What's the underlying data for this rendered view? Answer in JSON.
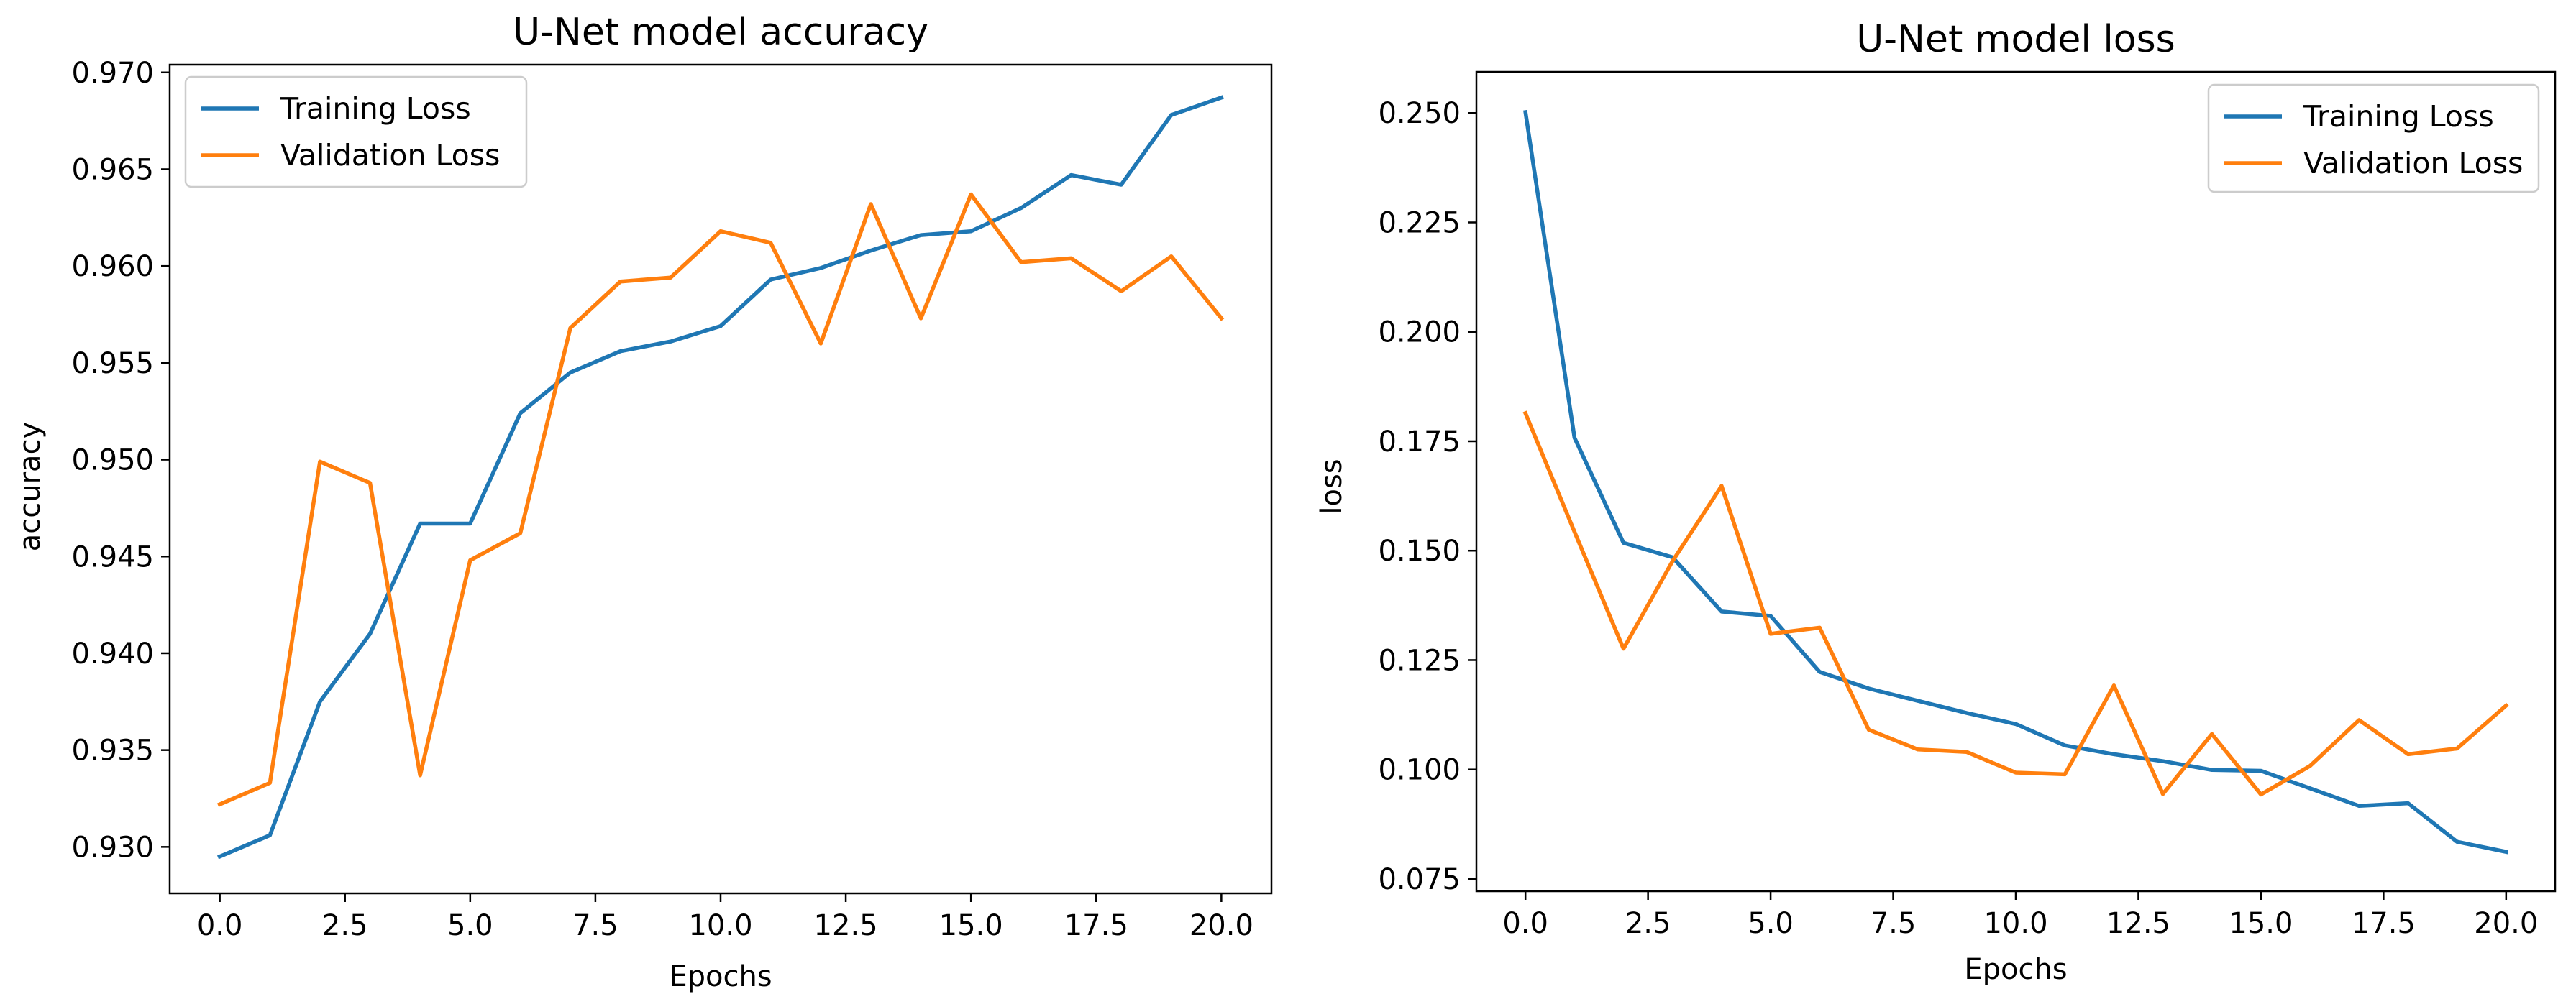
{
  "chart_data": [
    {
      "type": "line",
      "title": "U-Net model accuracy",
      "xlabel": "Epochs",
      "ylabel": "accuracy",
      "xlim": [
        -1,
        21
      ],
      "ylim": [
        0.9276,
        0.9704
      ],
      "xticks": [
        0,
        2.5,
        5,
        7.5,
        10,
        12.5,
        15,
        17.5,
        20
      ],
      "xtick_labels": [
        "0.0",
        "2.5",
        "5.0",
        "7.5",
        "10.0",
        "12.5",
        "15.0",
        "17.5",
        "20.0"
      ],
      "yticks": [
        0.93,
        0.935,
        0.94,
        0.945,
        0.95,
        0.955,
        0.96,
        0.965,
        0.97
      ],
      "ytick_labels": [
        "0.930",
        "0.935",
        "0.940",
        "0.945",
        "0.950",
        "0.955",
        "0.960",
        "0.965",
        "0.970"
      ],
      "legend_position": "top-left",
      "x": [
        0,
        1,
        2,
        3,
        4,
        5,
        6,
        7,
        8,
        9,
        10,
        11,
        12,
        13,
        14,
        15,
        16,
        17,
        18,
        19,
        20
      ],
      "series": [
        {
          "name": "Training Loss",
          "color": "#1f77b4",
          "values": [
            0.9295,
            0.9306,
            0.9375,
            0.941,
            0.9467,
            0.9467,
            0.9524,
            0.9545,
            0.9556,
            0.9561,
            0.9569,
            0.9593,
            0.9599,
            0.9608,
            0.9616,
            0.9618,
            0.963,
            0.9647,
            0.9642,
            0.9678,
            0.9687
          ]
        },
        {
          "name": "Validation Loss",
          "color": "#ff7f0e",
          "values": [
            0.9322,
            0.9333,
            0.9499,
            0.9488,
            0.9337,
            0.9448,
            0.9462,
            0.9568,
            0.9592,
            0.9594,
            0.9618,
            0.9612,
            0.956,
            0.9632,
            0.9573,
            0.9637,
            0.9602,
            0.9604,
            0.9587,
            0.9605,
            0.9573
          ]
        }
      ]
    },
    {
      "type": "line",
      "title": "U-Net model loss",
      "xlabel": "Epochs",
      "ylabel": "loss",
      "xlim": [
        -1,
        21
      ],
      "ylim": [
        0.0722,
        0.2594
      ],
      "xticks": [
        0,
        2.5,
        5,
        7.5,
        10,
        12.5,
        15,
        17.5,
        20
      ],
      "xtick_labels": [
        "0.0",
        "2.5",
        "5.0",
        "7.5",
        "10.0",
        "12.5",
        "15.0",
        "17.5",
        "20.0"
      ],
      "yticks": [
        0.075,
        0.1,
        0.125,
        0.15,
        0.175,
        0.2,
        0.225,
        0.25
      ],
      "ytick_labels": [
        "0.075",
        "0.100",
        "0.125",
        "0.150",
        "0.175",
        "0.200",
        "0.225",
        "0.250"
      ],
      "legend_position": "top-right",
      "x": [
        0,
        1,
        2,
        3,
        4,
        5,
        6,
        7,
        8,
        9,
        10,
        11,
        12,
        13,
        14,
        15,
        16,
        17,
        18,
        19,
        20
      ],
      "series": [
        {
          "name": "Training Loss",
          "color": "#1f77b4",
          "values": [
            0.2502,
            0.1758,
            0.1518,
            0.1485,
            0.1361,
            0.1351,
            0.1223,
            0.1185,
            0.1157,
            0.1129,
            0.1104,
            0.1055,
            0.1035,
            0.1019,
            0.0999,
            0.0997,
            0.0957,
            0.0917,
            0.0923,
            0.0835,
            0.0812
          ]
        },
        {
          "name": "Validation Loss",
          "color": "#ff7f0e",
          "values": [
            0.1814,
            0.1543,
            0.1276,
            0.1476,
            0.1648,
            0.131,
            0.1324,
            0.1091,
            0.1046,
            0.104,
            0.0993,
            0.0989,
            0.1192,
            0.0944,
            0.1081,
            0.0943,
            0.1008,
            0.1113,
            0.1035,
            0.1048,
            0.1146
          ]
        }
      ]
    }
  ]
}
